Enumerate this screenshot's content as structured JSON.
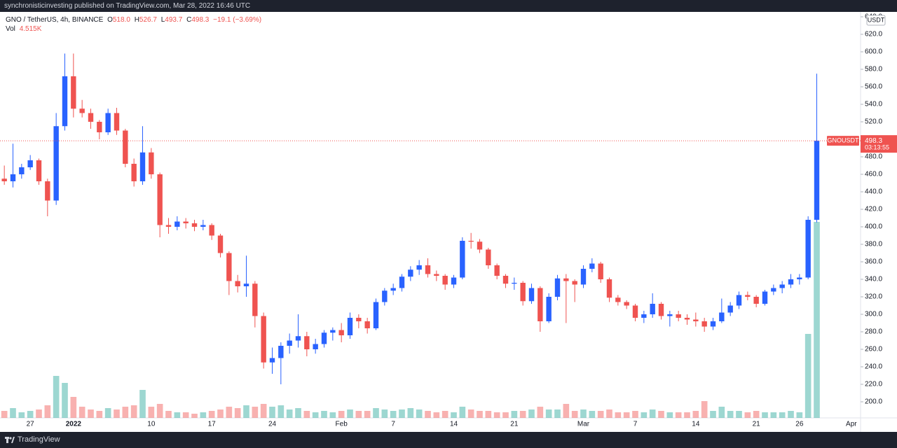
{
  "header": {
    "text": "synchronisticinvesting published on TradingView.com, Mar 28, 2022 16:46 UTC"
  },
  "chart_data": {
    "type": "candlestick",
    "symbol": "GNO / TetherUS, 4h, BINANCE",
    "ohlc_labels": [
      "O",
      "H",
      "L",
      "C"
    ],
    "ohlc_values": [
      {
        "value": 518,
        "label": "518.0"
      },
      526.7,
      493.7,
      498.3
    ],
    "change": "−19.1 (−3.69%)",
    "volume_label": "Vol",
    "volume_value": "4.515K",
    "currency": "USDT",
    "symbol_tag": "GNOUSDT",
    "last_price": 498.3,
    "countdown": "03:13:55",
    "up_color": "#2962ff",
    "down_color": "#ef5350",
    "volume_up_color": "#26a69a",
    "volume_down_color": "#ef5350",
    "grid": false,
    "categories": [
      null,
      null,
      null,
      "27",
      null,
      null,
      null,
      null,
      "2022",
      null,
      null,
      null,
      null,
      null,
      null,
      null,
      null,
      "10",
      null,
      null,
      null,
      null,
      null,
      null,
      "17",
      null,
      null,
      null,
      null,
      null,
      null,
      "24",
      null,
      null,
      null,
      null,
      null,
      null,
      null,
      "Feb",
      null,
      null,
      null,
      null,
      null,
      "7",
      null,
      null,
      null,
      null,
      null,
      null,
      "14",
      null,
      null,
      null,
      null,
      null,
      null,
      "21",
      null,
      null,
      null,
      null,
      null,
      null,
      null,
      "Mar",
      null,
      null,
      null,
      null,
      null,
      "7",
      null,
      null,
      null,
      null,
      null,
      null,
      "14",
      null,
      null,
      null,
      null,
      null,
      null,
      "21",
      null,
      null,
      null,
      null,
      "26",
      null,
      null,
      null,
      null,
      null,
      "Apr"
    ],
    "open": [
      455,
      452,
      460,
      468,
      476,
      452,
      430,
      515,
      572,
      535,
      530,
      520,
      508,
      530,
      510,
      472,
      452,
      485,
      460,
      402,
      400,
      406,
      404,
      400,
      402,
      390,
      370,
      338,
      332,
      335,
      298,
      245,
      250,
      264,
      270,
      275,
      260,
      266,
      279,
      282,
      276,
      296,
      292,
      284,
      314,
      327,
      330,
      343,
      351,
      356,
      346,
      344,
      334,
      342,
      384,
      383,
      374,
      356,
      344,
      335,
      336,
      315,
      330,
      292,
      320,
      341,
      338,
      334,
      352,
      358,
      340,
      319,
      314,
      310,
      296,
      300,
      312,
      298,
      300,
      296,
      294,
      292,
      286,
      292,
      302,
      310,
      322,
      320,
      312,
      326,
      330,
      334,
      340,
      342,
      408,
      null,
      null,
      null,
      null
    ],
    "high": [
      470,
      495,
      472,
      482,
      478,
      455,
      530,
      598,
      598,
      545,
      535,
      522,
      535,
      536,
      512,
      478,
      515,
      490,
      462,
      410,
      412,
      410,
      408,
      408,
      404,
      392,
      372,
      345,
      367,
      338,
      302,
      262,
      268,
      278,
      300,
      280,
      272,
      282,
      285,
      290,
      302,
      300,
      296,
      318,
      330,
      335,
      346,
      355,
      362,
      364,
      350,
      346,
      345,
      388,
      393,
      386,
      376,
      358,
      346,
      342,
      338,
      335,
      332,
      324,
      345,
      346,
      340,
      356,
      364,
      360,
      342,
      322,
      316,
      312,
      304,
      324,
      314,
      304,
      304,
      300,
      302,
      296,
      296,
      318,
      314,
      326,
      326,
      322,
      328,
      334,
      338,
      346,
      346,
      412,
      575,
      null,
      null,
      null,
      null
    ],
    "low": [
      448,
      445,
      455,
      465,
      448,
      412,
      425,
      510,
      525,
      525,
      512,
      500,
      505,
      505,
      468,
      446,
      448,
      455,
      388,
      392,
      396,
      398,
      395,
      396,
      385,
      365,
      322,
      325,
      320,
      285,
      238,
      232,
      220,
      255,
      262,
      252,
      255,
      262,
      270,
      268,
      272,
      284,
      278,
      282,
      310,
      322,
      326,
      338,
      345,
      342,
      338,
      328,
      330,
      340,
      375,
      370,
      352,
      340,
      330,
      328,
      310,
      312,
      280,
      290,
      316,
      290,
      314,
      330,
      348,
      336,
      314,
      310,
      306,
      292,
      290,
      296,
      294,
      286,
      292,
      288,
      286,
      280,
      282,
      290,
      298,
      306,
      316,
      308,
      310,
      322,
      324,
      330,
      334,
      340,
      405,
      null,
      null,
      null,
      null
    ],
    "close": [
      452,
      460,
      468,
      476,
      452,
      430,
      515,
      572,
      535,
      530,
      520,
      508,
      530,
      510,
      472,
      452,
      485,
      460,
      402,
      400,
      406,
      404,
      400,
      402,
      390,
      370,
      338,
      332,
      335,
      298,
      245,
      250,
      264,
      270,
      275,
      260,
      266,
      279,
      282,
      276,
      296,
      292,
      284,
      314,
      327,
      330,
      343,
      351,
      356,
      346,
      344,
      334,
      342,
      384,
      383,
      374,
      356,
      344,
      335,
      336,
      315,
      330,
      292,
      320,
      341,
      338,
      334,
      352,
      358,
      340,
      319,
      314,
      310,
      296,
      300,
      312,
      298,
      300,
      296,
      294,
      292,
      286,
      292,
      302,
      310,
      322,
      320,
      312,
      326,
      330,
      334,
      340,
      342,
      408,
      498.3,
      null,
      null,
      null,
      null
    ],
    "volume": [
      5,
      7,
      4,
      5,
      6,
      9,
      30,
      25,
      15,
      8,
      6,
      5,
      7,
      6,
      8,
      9,
      20,
      8,
      10,
      5,
      4,
      4,
      3,
      4,
      5,
      6,
      8,
      7,
      9,
      8,
      10,
      8,
      9,
      6,
      7,
      5,
      4,
      5,
      4,
      5,
      6,
      5,
      5,
      7,
      6,
      5,
      6,
      7,
      6,
      5,
      4,
      5,
      4,
      8,
      6,
      5,
      5,
      4,
      4,
      5,
      5,
      6,
      8,
      6,
      6,
      10,
      5,
      6,
      5,
      5,
      6,
      4,
      4,
      5,
      4,
      6,
      5,
      4,
      4,
      4,
      5,
      12,
      5,
      8,
      5,
      5,
      4,
      5,
      4,
      4,
      4,
      5,
      4,
      60,
      140,
      null,
      null,
      null,
      null
    ],
    "ylim": [
      181.6,
      644.8
    ],
    "yticks": [
      {
        "value": 200,
        "label": "200.0"
      },
      {
        "value": 220,
        "label": "220.0"
      },
      {
        "value": 240,
        "label": "240.0"
      },
      {
        "value": 260,
        "label": "260.0"
      },
      {
        "value": 280,
        "label": "280.0"
      },
      {
        "value": 300,
        "label": "300.0"
      },
      {
        "value": 320,
        "label": "320.0"
      },
      {
        "value": 340,
        "label": "340.0"
      },
      {
        "value": 360,
        "label": "360.0"
      },
      {
        "value": 380,
        "label": "380.0"
      },
      {
        "value": 400,
        "label": "400.0"
      },
      {
        "value": 420,
        "label": "420.0"
      },
      {
        "value": 440,
        "label": "440.0"
      },
      {
        "value": 460,
        "label": "460.0"
      },
      {
        "value": 480,
        "label": "480.0"
      },
      {
        "value": 500,
        "label": "500.0"
      },
      {
        "value": 520,
        "label": "520.0"
      },
      {
        "value": 540,
        "label": "540.0"
      },
      {
        "value": 560,
        "label": "560.0"
      },
      {
        "value": 580,
        "label": "580.0"
      },
      {
        "value": 600,
        "label": "600.0"
      },
      {
        "value": 620,
        "label": "620.0"
      },
      {
        "value": 640,
        "label": "640.0"
      }
    ]
  },
  "footer": {
    "brand": "TradingView"
  }
}
